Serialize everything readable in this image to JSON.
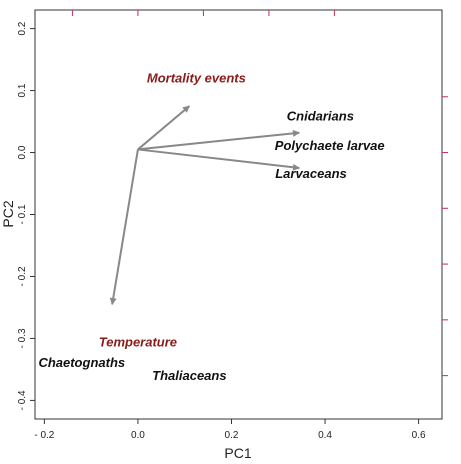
{
  "chart_data": {
    "type": "scatter",
    "subtype": "pca-biplot",
    "xlabel": "PC1",
    "ylabel": "PC2",
    "xlim": [
      -0.22,
      0.65
    ],
    "ylim": [
      -0.43,
      0.23
    ],
    "x_ticks": [
      -0.2,
      0,
      0.2,
      0.4,
      0.6
    ],
    "x_tick_labels": [
      "- 0.2",
      "0.0",
      "0.2",
      "0.4",
      "0.6"
    ],
    "y_ticks": [
      0.2,
      0.1,
      0.0,
      -0.1,
      -0.2,
      -0.3,
      -0.4
    ],
    "y_tick_labels": [
      "0.2",
      "0.1",
      "0.0",
      "- 0.1",
      "- 0.2",
      "- 0.3",
      "- 0.4"
    ],
    "top_axis_ticks": [
      -0.14,
      0,
      0.14,
      0.28,
      0.42
    ],
    "right_axis_ticks": [
      0.09,
      0.0,
      -0.09,
      -0.18,
      -0.27,
      -0.36
    ],
    "arrow_color": "#888888",
    "env_color": "#8b1a1a",
    "species_color": "#111111",
    "side_tick_color": "#c33050",
    "grid": false,
    "arrows": [
      {
        "to": [
          0.11,
          0.075
        ]
      },
      {
        "to": [
          0.345,
          0.032
        ]
      },
      {
        "to": [
          0.345,
          -0.025
        ]
      },
      {
        "to": [
          -0.055,
          -0.245
        ]
      }
    ],
    "arrow_origin": [
      0.0,
      0.005
    ],
    "species": [
      {
        "label": "Cnidarians",
        "x": 0.39,
        "y": 0.052
      },
      {
        "label": "Polychaete larvae",
        "x": 0.41,
        "y": 0.004
      },
      {
        "label": "Larvaceans",
        "x": 0.37,
        "y": -0.041
      },
      {
        "label": "Chaetognaths",
        "x": -0.12,
        "y": -0.346
      },
      {
        "label": "Thaliaceans",
        "x": 0.11,
        "y": -0.367
      }
    ],
    "env_labels": [
      {
        "label": "Mortality events",
        "x": 0.125,
        "y": 0.113
      },
      {
        "label": "Temperature",
        "x": 0.0,
        "y": -0.313
      }
    ]
  }
}
